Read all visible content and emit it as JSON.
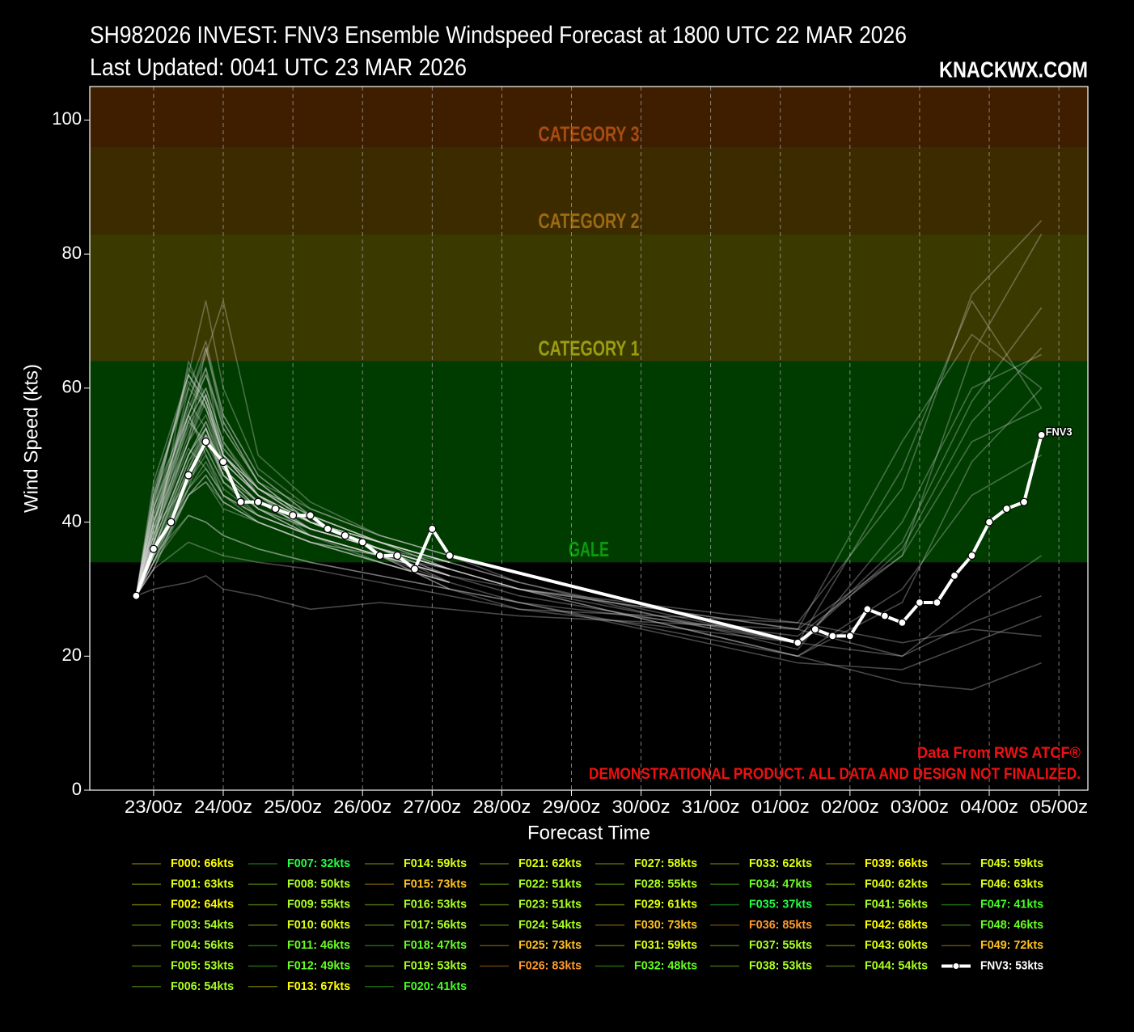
{
  "chart_data": {
    "type": "line",
    "title": "SH982026 INVEST: FNV3 Ensemble Windspeed Forecast at 1800 UTC 22 MAR 2026",
    "subtitle": "Last Updated: 0041 UTC 23 MAR 2026",
    "brand": "KNACKWX.COM",
    "y_label": "Wind Speed (kts)",
    "x_label": "Forecast Time",
    "source_note": "Data From RWS ATCF®",
    "disclaimer": "DEMONSTRATIONAL PRODUCT. ALL DATA AND DESIGN NOT FINALIZED.",
    "end_label": "FNV3",
    "ylim": [
      0,
      105
    ],
    "yticks": [
      0,
      20,
      40,
      60,
      80,
      100
    ],
    "xlim": [
      -16,
      328
    ],
    "xticks": [
      {
        "value": 6,
        "label": "23/00z"
      },
      {
        "value": 30,
        "label": "24/00z"
      },
      {
        "value": 54,
        "label": "25/00z"
      },
      {
        "value": 78,
        "label": "26/00z"
      },
      {
        "value": 102,
        "label": "27/00z"
      },
      {
        "value": 126,
        "label": "28/00z"
      },
      {
        "value": 150,
        "label": "29/00z"
      },
      {
        "value": 174,
        "label": "30/00z"
      },
      {
        "value": 198,
        "label": "31/00z"
      },
      {
        "value": 222,
        "label": "01/00z"
      },
      {
        "value": 246,
        "label": "02/00z"
      },
      {
        "value": 270,
        "label": "03/00z"
      },
      {
        "value": 294,
        "label": "04/00z"
      },
      {
        "value": 318,
        "label": "05/00z"
      }
    ],
    "grid": "x",
    "bands": [
      {
        "name": "GALE",
        "min": 34,
        "max": 64,
        "color": "#003c00",
        "label_color": "#0c9a0c"
      },
      {
        "name": "CATEGORY 1",
        "min": 64,
        "max": 83,
        "color": "#3a3a00",
        "label_color": "#9c9c12"
      },
      {
        "name": "CATEGORY 2",
        "min": 83,
        "max": 96,
        "color": "#3d2b00",
        "label_color": "#9c6a12"
      },
      {
        "name": "CATEGORY 3",
        "min": 96,
        "max": 105,
        "color": "#3f1e00",
        "label_color": "#a84c12"
      }
    ],
    "member_line_color": "#d8d8d8",
    "member_x": [
      0,
      6,
      18,
      24,
      30,
      42,
      60,
      84,
      108,
      132,
      228,
      264,
      288,
      312
    ],
    "series": [
      {
        "name": "F000: 66kts",
        "color": "#ffff00",
        "values": [
          29,
          38,
          52,
          66,
          55,
          46,
          42,
          38,
          35,
          31,
          null,
          null,
          null,
          null
        ]
      },
      {
        "name": "F001: 63kts",
        "color": "#ddff11",
        "values": [
          29,
          42,
          56,
          63,
          50,
          44,
          40,
          37,
          34,
          null,
          null,
          null,
          null,
          null
        ]
      },
      {
        "name": "F002: 64kts",
        "color": "#ffff00",
        "values": [
          29,
          36,
          64,
          58,
          50,
          45,
          41,
          37,
          33,
          null,
          null,
          null,
          null,
          null
        ]
      },
      {
        "name": "F003: 54kts",
        "color": "#aaff22",
        "values": [
          29,
          35,
          48,
          54,
          47,
          42,
          39,
          36,
          31,
          null,
          null,
          null,
          null,
          null
        ]
      },
      {
        "name": "F004: 56kts",
        "color": "#aaff22",
        "values": [
          29,
          44,
          56,
          50,
          45,
          41,
          38,
          35,
          30,
          27,
          25,
          22,
          24,
          23
        ]
      },
      {
        "name": "F005: 53kts",
        "color": "#aaff22",
        "values": [
          29,
          33,
          45,
          53,
          48,
          43,
          40,
          36,
          33,
          null,
          null,
          null,
          null,
          null
        ]
      },
      {
        "name": "F006: 54kts",
        "color": "#aaff22",
        "values": [
          29,
          37,
          50,
          54,
          46,
          41,
          38,
          35,
          32,
          null,
          null,
          null,
          null,
          null
        ]
      },
      {
        "name": "F007: 32kts",
        "color": "#22ff44",
        "values": [
          29,
          30,
          31,
          32,
          30,
          29,
          27,
          28,
          27,
          26,
          24,
          20,
          25,
          29
        ]
      },
      {
        "name": "F008: 50kts",
        "color": "#aaff22",
        "values": [
          29,
          39,
          46,
          50,
          44,
          40,
          37,
          35,
          32,
          30,
          20,
          30,
          44,
          50
        ]
      },
      {
        "name": "F009: 55kts",
        "color": "#aaff22",
        "values": [
          29,
          41,
          55,
          52,
          47,
          43,
          39,
          36,
          34,
          null,
          null,
          null,
          null,
          null
        ]
      },
      {
        "name": "F010: 60kts",
        "color": "#ddff11",
        "values": [
          29,
          45,
          60,
          57,
          49,
          44,
          40,
          37,
          34,
          null,
          null,
          null,
          null,
          null
        ]
      },
      {
        "name": "F011: 46kts",
        "color": "#66ff22",
        "values": [
          29,
          34,
          44,
          46,
          42,
          40,
          37,
          34,
          31,
          null,
          null,
          null,
          null,
          null
        ]
      },
      {
        "name": "F012: 49kts",
        "color": "#66ff22",
        "values": [
          29,
          36,
          45,
          49,
          44,
          41,
          38,
          35,
          30,
          null,
          null,
          null,
          null,
          null
        ]
      },
      {
        "name": "F013: 67kts",
        "color": "#ffff00",
        "values": [
          29,
          37,
          60,
          67,
          56,
          47,
          41,
          37,
          34,
          31,
          22,
          36,
          55,
          66
        ]
      },
      {
        "name": "F014: 59kts",
        "color": "#ddff11",
        "values": [
          29,
          40,
          52,
          59,
          50,
          45,
          40,
          36,
          33,
          null,
          null,
          null,
          null,
          null
        ]
      },
      {
        "name": "F015: 73kts",
        "color": "#ffc020",
        "values": [
          29,
          43,
          62,
          73,
          60,
          48,
          42,
          38,
          35,
          null,
          null,
          null,
          null,
          null
        ]
      },
      {
        "name": "F016: 53kts",
        "color": "#aaff22",
        "values": [
          29,
          35,
          47,
          53,
          49,
          44,
          39,
          36,
          32,
          null,
          null,
          null,
          null,
          null
        ]
      },
      {
        "name": "F017: 56kts",
        "color": "#aaff22",
        "values": [
          29,
          42,
          56,
          51,
          46,
          42,
          38,
          35,
          31,
          null,
          null,
          null,
          null,
          null
        ]
      },
      {
        "name": "F018: 47kts",
        "color": "#66ff22",
        "values": [
          29,
          33,
          44,
          47,
          43,
          40,
          37,
          34,
          31,
          null,
          null,
          null,
          null,
          null
        ]
      },
      {
        "name": "F019: 53kts",
        "color": "#aaff22",
        "values": [
          29,
          36,
          49,
          53,
          47,
          42,
          39,
          36,
          33,
          null,
          null,
          null,
          null,
          null
        ]
      },
      {
        "name": "F020: 41kts",
        "color": "#44ff22",
        "values": [
          29,
          35,
          41,
          40,
          38,
          36,
          34,
          32,
          30,
          28,
          20,
          16,
          15,
          19
        ]
      },
      {
        "name": "F021: 62kts",
        "color": "#ddff11",
        "values": [
          29,
          46,
          62,
          58,
          50,
          44,
          40,
          37,
          34,
          null,
          null,
          null,
          null,
          null
        ]
      },
      {
        "name": "F022: 51kts",
        "color": "#aaff22",
        "values": [
          29,
          34,
          46,
          51,
          46,
          42,
          38,
          35,
          32,
          null,
          null,
          null,
          null,
          null
        ]
      },
      {
        "name": "F023: 51kts",
        "color": "#aaff22",
        "values": [
          29,
          38,
          51,
          48,
          44,
          41,
          38,
          35,
          33,
          null,
          null,
          null,
          null,
          null
        ]
      },
      {
        "name": "F024: 54kts",
        "color": "#aaff22",
        "values": [
          29,
          37,
          50,
          54,
          47,
          43,
          39,
          36,
          33,
          null,
          null,
          null,
          null,
          null
        ]
      },
      {
        "name": "F025: 73kts",
        "color": "#ffc020",
        "values": [
          29,
          39,
          58,
          65,
          73,
          50,
          43,
          38,
          35,
          null,
          null,
          null,
          null,
          null
        ]
      },
      {
        "name": "F026: 83kts",
        "color": "#ff9a30",
        "values": [
          29,
          40,
          55,
          60,
          52,
          44,
          38,
          34,
          31,
          28,
          23,
          35,
          65,
          83
        ]
      },
      {
        "name": "F027: 58kts",
        "color": "#ddff11",
        "values": [
          29,
          42,
          58,
          54,
          48,
          43,
          39,
          36,
          33,
          null,
          null,
          null,
          null,
          null
        ]
      },
      {
        "name": "F028: 55kts",
        "color": "#aaff22",
        "values": [
          29,
          36,
          50,
          55,
          49,
          44,
          40,
          36,
          33,
          null,
          null,
          null,
          null,
          null
        ]
      },
      {
        "name": "F029: 61kts",
        "color": "#ddff11",
        "values": [
          29,
          44,
          61,
          57,
          50,
          45,
          41,
          37,
          34,
          null,
          null,
          null,
          null,
          null
        ]
      },
      {
        "name": "F030: 73kts",
        "color": "#ffc020",
        "values": [
          29,
          38,
          56,
          62,
          55,
          46,
          40,
          36,
          32,
          29,
          22,
          48,
          73,
          57
        ]
      },
      {
        "name": "F031: 59kts",
        "color": "#ddff11",
        "values": [
          29,
          40,
          54,
          59,
          50,
          44,
          40,
          37,
          34,
          null,
          null,
          null,
          null,
          null
        ]
      },
      {
        "name": "F032: 48kts",
        "color": "#66ff22",
        "values": [
          29,
          35,
          45,
          48,
          44,
          41,
          38,
          35,
          32,
          null,
          null,
          null,
          null,
          null
        ]
      },
      {
        "name": "F033: 62kts",
        "color": "#ddff11",
        "values": [
          29,
          43,
          62,
          58,
          50,
          44,
          40,
          37,
          33,
          null,
          null,
          null,
          null,
          null
        ]
      },
      {
        "name": "F034: 47kts",
        "color": "#66ff22",
        "values": [
          29,
          34,
          44,
          47,
          43,
          40,
          37,
          34,
          31,
          null,
          null,
          null,
          null,
          null
        ]
      },
      {
        "name": "F035: 37kts",
        "color": "#22ff44",
        "values": [
          29,
          33,
          37,
          36,
          35,
          34,
          33,
          31,
          29,
          27,
          22,
          20,
          28,
          35
        ]
      },
      {
        "name": "F036: 85kts",
        "color": "#ff9a30",
        "values": [
          29,
          41,
          57,
          63,
          54,
          46,
          40,
          36,
          33,
          30,
          25,
          45,
          74,
          85
        ]
      },
      {
        "name": "F037: 55kts",
        "color": "#aaff22",
        "values": [
          29,
          37,
          50,
          55,
          48,
          43,
          39,
          36,
          33,
          null,
          null,
          null,
          null,
          null
        ]
      },
      {
        "name": "F038: 53kts",
        "color": "#aaff22",
        "values": [
          29,
          36,
          48,
          53,
          47,
          42,
          38,
          35,
          32,
          null,
          null,
          null,
          null,
          null
        ]
      },
      {
        "name": "F039: 66kts",
        "color": "#ffff00",
        "values": [
          29,
          40,
          58,
          66,
          56,
          47,
          41,
          37,
          34,
          31,
          21,
          40,
          60,
          65
        ]
      },
      {
        "name": "F040: 62kts",
        "color": "#ddff11",
        "values": [
          29,
          44,
          62,
          57,
          50,
          45,
          40,
          37,
          34,
          null,
          null,
          null,
          null,
          null
        ]
      },
      {
        "name": "F041: 56kts",
        "color": "#aaff22",
        "values": [
          29,
          39,
          52,
          56,
          49,
          44,
          40,
          36,
          33,
          null,
          null,
          null,
          null,
          null
        ]
      },
      {
        "name": "F042: 68kts",
        "color": "#ffff00",
        "values": [
          29,
          38,
          52,
          58,
          50,
          44,
          39,
          36,
          33,
          30,
          24,
          52,
          68,
          60
        ]
      },
      {
        "name": "F043: 60kts",
        "color": "#ddff11",
        "values": [
          29,
          37,
          55,
          60,
          52,
          45,
          40,
          36,
          33,
          30,
          20,
          28,
          49,
          60
        ]
      },
      {
        "name": "F044: 54kts",
        "color": "#aaff22",
        "values": [
          29,
          36,
          49,
          54,
          48,
          43,
          39,
          36,
          33,
          null,
          null,
          null,
          null,
          null
        ]
      },
      {
        "name": "F045: 59kts",
        "color": "#ddff11",
        "values": [
          29,
          39,
          53,
          59,
          51,
          45,
          40,
          36,
          33,
          30,
          24,
          35,
          52,
          57
        ]
      },
      {
        "name": "F046: 63kts",
        "color": "#ddff11",
        "values": [
          29,
          42,
          63,
          59,
          51,
          45,
          41,
          37,
          34,
          null,
          null,
          null,
          null,
          null
        ]
      },
      {
        "name": "F047: 41kts",
        "color": "#44ff22",
        "values": [
          29,
          34,
          41,
          40,
          38,
          36,
          34,
          32,
          30,
          28,
          19,
          18,
          22,
          26
        ]
      },
      {
        "name": "F048: 46kts",
        "color": "#66ff22",
        "values": [
          29,
          35,
          44,
          46,
          43,
          40,
          37,
          35,
          32,
          null,
          null,
          null,
          null,
          null
        ]
      },
      {
        "name": "F049: 72kts",
        "color": "#ffc020",
        "values": [
          29,
          40,
          56,
          62,
          54,
          46,
          40,
          36,
          33,
          30,
          22,
          37,
          58,
          72
        ]
      },
      {
        "name": "FNV3: 53kts",
        "color": "#ffffff",
        "x": [
          0,
          6,
          12,
          18,
          24,
          30,
          36,
          42,
          48,
          54,
          60,
          66,
          72,
          78,
          84,
          90,
          96,
          102,
          108,
          228,
          234,
          240,
          246,
          252,
          258,
          264,
          270,
          276,
          282,
          288,
          294,
          300,
          306,
          312
        ],
        "values": [
          29,
          36,
          40,
          47,
          52,
          49,
          43,
          43,
          42,
          41,
          41,
          39,
          38,
          37,
          35,
          35,
          33,
          39,
          35,
          22,
          24,
          23,
          23,
          27,
          26,
          25,
          28,
          28,
          32,
          35,
          40,
          42,
          43,
          53
        ]
      }
    ]
  }
}
